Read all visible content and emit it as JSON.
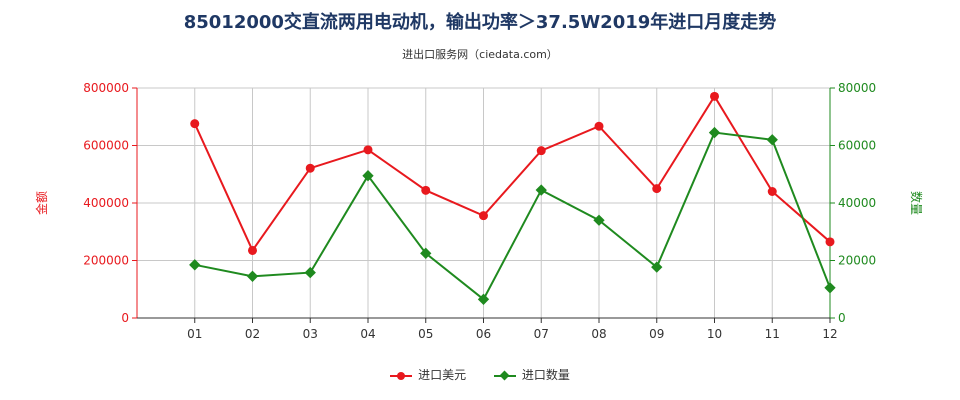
{
  "title": "85012000交直流两用电动机，输出功率＞37.5W2019年进口月度走势",
  "subtitle": "进出口服务网（ciedata.com）",
  "colors": {
    "value": "#e8191e",
    "qty": "#1f8a1f",
    "title": "#1f3864"
  },
  "chart_data": {
    "type": "line",
    "categories": [
      "01",
      "02",
      "03",
      "04",
      "05",
      "06",
      "07",
      "08",
      "09",
      "10",
      "11",
      "12"
    ],
    "ylabel_left": "金额",
    "ylabel_right": "数量",
    "ylim_left": [
      0,
      800000
    ],
    "ylim_right": [
      0,
      80000
    ],
    "yticks_left": [
      "0",
      "200000",
      "400000",
      "600000",
      "800000"
    ],
    "yticks_right": [
      "0",
      "20000",
      "40000",
      "60000",
      "80000"
    ],
    "grid": true,
    "legend_position": "bottom",
    "series": [
      {
        "name": "进口美元",
        "axis": "left",
        "marker": "circle",
        "values": [
          676000,
          235000,
          521000,
          585000,
          444000,
          356000,
          582000,
          667000,
          450000,
          771000,
          440000,
          265000
        ]
      },
      {
        "name": "进口数量",
        "axis": "right",
        "marker": "diamond",
        "values": [
          18500,
          14500,
          15800,
          49500,
          22500,
          6500,
          44500,
          34000,
          17700,
          64500,
          62000,
          10500
        ]
      }
    ]
  }
}
